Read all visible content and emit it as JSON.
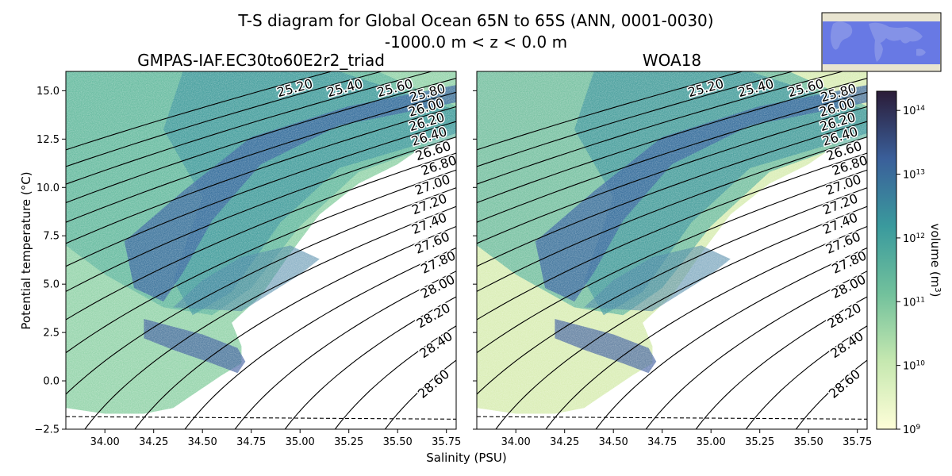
{
  "figure": {
    "title_line1": "T-S diagram for Global Ocean 65N to 65S (ANN, 0001-0030)",
    "title_line2": "-1000.0 m < z < 0.0 m",
    "xlabel": "Salinity (PSU)",
    "ylabel": "Potential temperature (°C)",
    "colorbar_label": "volume (m³)",
    "inset": "world-map-region-inset",
    "colors": {
      "density_low": "#fdfbd6",
      "density_mid_low": "#8fd3a2",
      "density_mid": "#3f9a9c",
      "density_high": "#3a3f8f",
      "density_max": "#2d1e3e",
      "contour": "#000000",
      "inset_region": "#5a6de6",
      "inset_land": "#e8e4d0"
    }
  },
  "chart_data": [
    {
      "type": "heatmap",
      "title": "GMPAS-IAF.EC30to60E2r2_triad",
      "xlim": [
        33.8,
        35.8
      ],
      "ylim": [
        -2.5,
        16.0
      ],
      "xticks": [
        "34.00",
        "34.25",
        "34.50",
        "34.75",
        "35.00",
        "35.25",
        "35.50",
        "35.75"
      ],
      "yticks": [
        "−2.5",
        "0.0",
        "2.5",
        "5.0",
        "7.5",
        "10.0",
        "12.5",
        "15.0"
      ],
      "ytick_values": [
        -2.5,
        0.0,
        2.5,
        5.0,
        7.5,
        10.0,
        12.5,
        15.0
      ],
      "xtick_values": [
        34.0,
        34.25,
        34.5,
        34.75,
        35.0,
        35.25,
        35.5,
        35.75
      ],
      "density_contours": [
        "25.20",
        "25.40",
        "25.60",
        "25.80",
        "26.00",
        "26.20",
        "26.40",
        "26.60",
        "26.80",
        "27.00",
        "27.20",
        "27.40",
        "27.60",
        "27.80",
        "28.00",
        "28.20",
        "28.40",
        "28.60"
      ],
      "freezing_line": "dashed",
      "grid": false
    },
    {
      "type": "heatmap",
      "title": "WOA18",
      "xlim": [
        33.8,
        35.8
      ],
      "ylim": [
        -2.5,
        16.0
      ],
      "xticks": [
        "34.00",
        "34.25",
        "34.50",
        "34.75",
        "35.00",
        "35.25",
        "35.50",
        "35.75"
      ],
      "xtick_values": [
        34.0,
        34.25,
        34.5,
        34.75,
        35.0,
        35.25,
        35.5,
        35.75
      ],
      "density_contours": [
        "25.20",
        "25.40",
        "25.60",
        "25.80",
        "26.00",
        "26.20",
        "26.40",
        "26.60",
        "26.80",
        "27.00",
        "27.20",
        "27.40",
        "27.60",
        "27.80",
        "28.00",
        "28.20",
        "28.40",
        "28.60"
      ],
      "freezing_line": "dashed",
      "grid": false
    }
  ],
  "colorbar": {
    "scale": "log",
    "range": [
      1000000000.0,
      200000000000000.0
    ],
    "ticks": [
      {
        "base": "10",
        "exp": "9",
        "value": 9
      },
      {
        "base": "10",
        "exp": "10",
        "value": 10
      },
      {
        "base": "10",
        "exp": "11",
        "value": 11
      },
      {
        "base": "10",
        "exp": "12",
        "value": 12
      },
      {
        "base": "10",
        "exp": "13",
        "value": 13
      },
      {
        "base": "10",
        "exp": "14",
        "value": 14
      }
    ]
  }
}
